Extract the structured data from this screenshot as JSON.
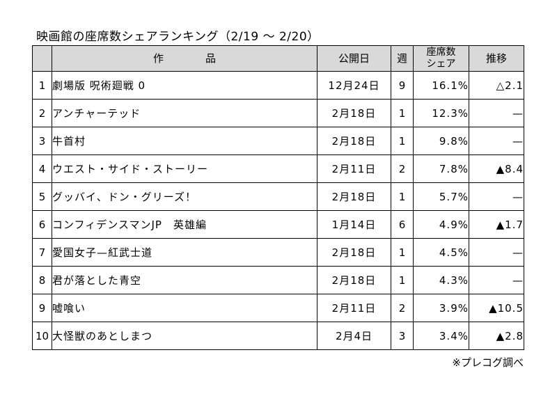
{
  "title": "映画館の座席数シェアランキング（2/19 ～ 2/20）",
  "columns": {
    "rank": "",
    "title": "作品",
    "release_date": "公開日",
    "weeks": "週",
    "share_line1": "座席数",
    "share_line2": "シェア",
    "trend": "推移"
  },
  "rows": [
    {
      "rank": "1",
      "title": "劇場版 呪術廻戦 0",
      "release_date": "12月24日",
      "weeks": "9",
      "share": "16.1%",
      "trend": "△2.1"
    },
    {
      "rank": "2",
      "title": "アンチャーテッド",
      "release_date": "2月18日",
      "weeks": "1",
      "share": "12.3%",
      "trend": "—"
    },
    {
      "rank": "3",
      "title": "牛首村",
      "release_date": "2月18日",
      "weeks": "1",
      "share": "9.8%",
      "trend": "—"
    },
    {
      "rank": "4",
      "title": "ウエスト・サイド・ストーリー",
      "release_date": "2月11日",
      "weeks": "2",
      "share": "7.8%",
      "trend": "▲8.4"
    },
    {
      "rank": "5",
      "title": "グッバイ、ドン・グリーズ！",
      "release_date": "2月18日",
      "weeks": "1",
      "share": "5.7%",
      "trend": "—"
    },
    {
      "rank": "6",
      "title": "コンフィデンスマンJP　英雄編",
      "release_date": "1月14日",
      "weeks": "6",
      "share": "4.9%",
      "trend": "▲1.7"
    },
    {
      "rank": "7",
      "title": "愛国女子—紅武士道",
      "release_date": "2月18日",
      "weeks": "1",
      "share": "4.5%",
      "trend": "—"
    },
    {
      "rank": "8",
      "title": "君が落とした青空",
      "release_date": "2月18日",
      "weeks": "1",
      "share": "4.3%",
      "trend": "—"
    },
    {
      "rank": "9",
      "title": "嘘喰い",
      "release_date": "2月11日",
      "weeks": "2",
      "share": "3.9%",
      "trend": "▲10.5"
    },
    {
      "rank": "10",
      "title": "大怪獣のあとしまつ",
      "release_date": "2月4日",
      "weeks": "3",
      "share": "3.4%",
      "trend": "▲2.8"
    }
  ],
  "source": "※プレコグ調べ"
}
